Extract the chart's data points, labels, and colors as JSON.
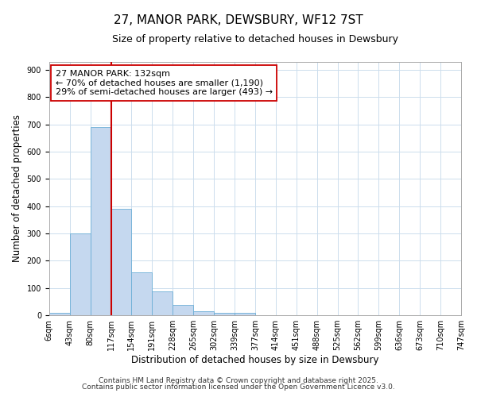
{
  "title": "27, MANOR PARK, DEWSBURY, WF12 7ST",
  "subtitle": "Size of property relative to detached houses in Dewsbury",
  "xlabel": "Distribution of detached houses by size in Dewsbury",
  "ylabel": "Number of detached properties",
  "bar_values": [
    8,
    300,
    690,
    390,
    157,
    87,
    38,
    15,
    10,
    8,
    0,
    0,
    0,
    0,
    0,
    0,
    0,
    0,
    0,
    0
  ],
  "bin_labels": [
    "6sqm",
    "43sqm",
    "80sqm",
    "117sqm",
    "154sqm",
    "191sqm",
    "228sqm",
    "265sqm",
    "302sqm",
    "339sqm",
    "377sqm",
    "414sqm",
    "451sqm",
    "488sqm",
    "525sqm",
    "562sqm",
    "599sqm",
    "636sqm",
    "673sqm",
    "710sqm",
    "747sqm"
  ],
  "bar_color": "#c5d8ef",
  "bar_edge_color": "#6baed6",
  "vline_x": 3,
  "vline_color": "#cc0000",
  "ylim": [
    0,
    930
  ],
  "yticks": [
    0,
    100,
    200,
    300,
    400,
    500,
    600,
    700,
    800,
    900
  ],
  "annotation_text": "27 MANOR PARK: 132sqm\n← 70% of detached houses are smaller (1,190)\n29% of semi-detached houses are larger (493) →",
  "annotation_box_color": "#ffffff",
  "annotation_box_edge": "#cc0000",
  "footer1": "Contains HM Land Registry data © Crown copyright and database right 2025.",
  "footer2": "Contains public sector information licensed under the Open Government Licence v3.0.",
  "bg_color": "#ffffff",
  "grid_color": "#ccdded",
  "title_fontsize": 11,
  "subtitle_fontsize": 9,
  "axis_label_fontsize": 8.5,
  "tick_label_fontsize": 7,
  "annotation_fontsize": 8,
  "footer_fontsize": 6.5
}
